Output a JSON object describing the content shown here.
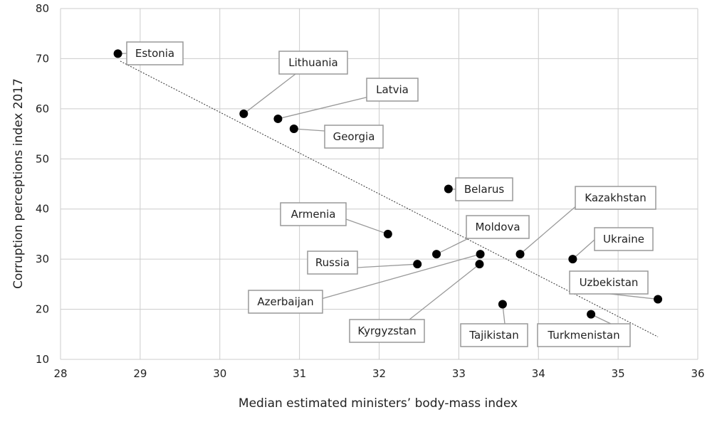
{
  "chart_data": {
    "type": "scatter",
    "xlabel": "Median estimated ministers’ body-mass index",
    "ylabel": "Corruption perceptions index 2017",
    "xlim": [
      28,
      36
    ],
    "ylim": [
      10,
      80
    ],
    "xticks": [
      28,
      29,
      30,
      31,
      32,
      33,
      34,
      35,
      36
    ],
    "yticks": [
      10,
      20,
      30,
      40,
      50,
      60,
      70,
      80
    ],
    "grid": true,
    "trendline": {
      "style": "dotted",
      "from": [
        28.75,
        69.5
      ],
      "to": [
        35.5,
        14.5
      ]
    },
    "points": [
      {
        "label": "Estonia",
        "x": 28.72,
        "y": 71
      },
      {
        "label": "Lithuania",
        "x": 30.3,
        "y": 59
      },
      {
        "label": "Latvia",
        "x": 30.73,
        "y": 58
      },
      {
        "label": "Georgia",
        "x": 30.93,
        "y": 56
      },
      {
        "label": "Belarus",
        "x": 32.87,
        "y": 44
      },
      {
        "label": "Armenia",
        "x": 32.11,
        "y": 35
      },
      {
        "label": "Moldova",
        "x": 32.72,
        "y": 31
      },
      {
        "label": "Kazakhstan",
        "x": 33.77,
        "y": 31
      },
      {
        "label": "Ukraine",
        "x": 34.43,
        "y": 30
      },
      {
        "label": "Russia",
        "x": 32.48,
        "y": 29
      },
      {
        "label": "Azerbaijan",
        "x": 33.27,
        "y": 31
      },
      {
        "label": "Kyrgyzstan",
        "x": 33.26,
        "y": 29
      },
      {
        "label": "Uzbekistan",
        "x": 35.5,
        "y": 22
      },
      {
        "label": "Tajikistan",
        "x": 33.55,
        "y": 21
      },
      {
        "label": "Turkmenistan",
        "x": 34.66,
        "y": 19
      }
    ]
  }
}
